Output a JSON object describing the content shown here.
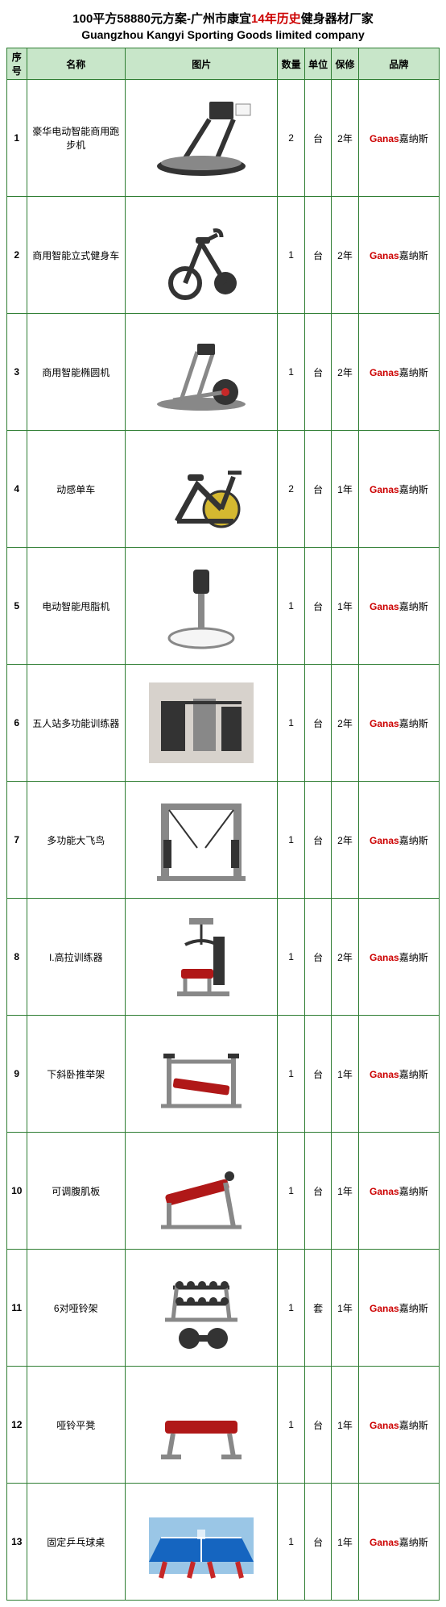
{
  "title_pre": "100平方58880元方案-广州市康宜",
  "title_red": "14年历史",
  "title_post": "健身器材厂家",
  "subtitle": "Guangzhou Kangyi Sporting Goods limited company",
  "columns": {
    "idx": "序号",
    "name": "名称",
    "image": "图片",
    "qty": "数量",
    "unit": "单位",
    "warranty": "保修",
    "brand": "品牌"
  },
  "col_widths": {
    "idx": 22,
    "name": 110,
    "image": 170,
    "qty": 30,
    "unit": 30,
    "warranty": 30,
    "brand": 90
  },
  "brand_red": "Ganas",
  "brand_black": "嘉纳斯",
  "rows": [
    {
      "idx": 1,
      "name": "豪华电动智能商用跑步机",
      "qty": 2,
      "unit": "台",
      "warranty": "2年",
      "icon": "treadmill"
    },
    {
      "idx": 2,
      "name": "商用智能立式健身车",
      "qty": 1,
      "unit": "台",
      "warranty": "2年",
      "icon": "upright-bike"
    },
    {
      "idx": 3,
      "name": "商用智能椭圆机",
      "qty": 1,
      "unit": "台",
      "warranty": "2年",
      "icon": "elliptical"
    },
    {
      "idx": 4,
      "name": "动感单车",
      "qty": 2,
      "unit": "台",
      "warranty": "1年",
      "icon": "spin-bike"
    },
    {
      "idx": 5,
      "name": "电动智能甩脂机",
      "qty": 1,
      "unit": "台",
      "warranty": "1年",
      "icon": "vibration"
    },
    {
      "idx": 6,
      "name": "五人站多功能训练器",
      "qty": 1,
      "unit": "台",
      "warranty": "2年",
      "icon": "multi-station"
    },
    {
      "idx": 7,
      "name": "多功能大飞鸟",
      "qty": 1,
      "unit": "台",
      "warranty": "2年",
      "icon": "cable-cross"
    },
    {
      "idx": 8,
      "name": "I.高拉训练器",
      "qty": 1,
      "unit": "台",
      "warranty": "2年",
      "icon": "lat-pulldown"
    },
    {
      "idx": 9,
      "name": "下斜卧推举架",
      "qty": 1,
      "unit": "台",
      "warranty": "1年",
      "icon": "decline-bench"
    },
    {
      "idx": 10,
      "name": "可调腹肌板",
      "qty": 1,
      "unit": "台",
      "warranty": "1年",
      "icon": "ab-bench"
    },
    {
      "idx": 11,
      "name": "6对哑铃架",
      "qty": 1,
      "unit": "套",
      "warranty": "1年",
      "icon": "dumbbell-rack"
    },
    {
      "idx": 12,
      "name": "哑铃平凳",
      "qty": 1,
      "unit": "台",
      "warranty": "1年",
      "icon": "flat-bench"
    },
    {
      "idx": 13,
      "name": "固定乒乓球桌",
      "qty": 1,
      "unit": "台",
      "warranty": "1年",
      "icon": "pingpong"
    }
  ],
  "icon_colors": {
    "metal": "#888888",
    "dark": "#333333",
    "accent_red": "#c62828",
    "accent_yellow": "#d4b830",
    "accent_blue": "#1565c0",
    "white": "#f5f5f5",
    "pad_red": "#b01818"
  }
}
